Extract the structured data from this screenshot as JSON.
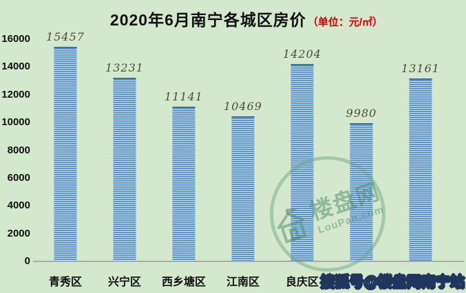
{
  "title": {
    "main": "2020年6月南宁各城区房价",
    "unit": "（单位：元/㎡）"
  },
  "chart_data": {
    "type": "bar",
    "title": "2020年6月南宁各城区房价（单位：元/㎡）",
    "categories": [
      "青秀区",
      "兴宁区",
      "西乡塘区",
      "江南区",
      "良庆区",
      "",
      ""
    ],
    "values": [
      15457,
      13231,
      11141,
      10469,
      14204,
      9980,
      13161
    ],
    "data_labels": [
      "15457",
      "13231",
      "11141",
      "10469",
      "14204",
      "9980",
      "13161"
    ],
    "xlabel": "",
    "ylabel": "",
    "ylim": [
      0,
      16000
    ],
    "yticks": [
      0,
      2000,
      4000,
      6000,
      8000,
      10000,
      12000,
      14000,
      16000
    ],
    "grid": false,
    "legend": "none",
    "bar_color": "#5e93c8",
    "bar_stripe_color": "#cfe5f3",
    "background_color": "#d3e8cc",
    "unit_text_color": "#d40000",
    "value_label_color": "#4c4c40"
  },
  "watermarks": {
    "circle": {
      "brand": "楼盘网",
      "domain": "LouPan.com",
      "house_icon": "house-icon"
    },
    "footer": "搜狐号@楼盘网南宁站"
  }
}
